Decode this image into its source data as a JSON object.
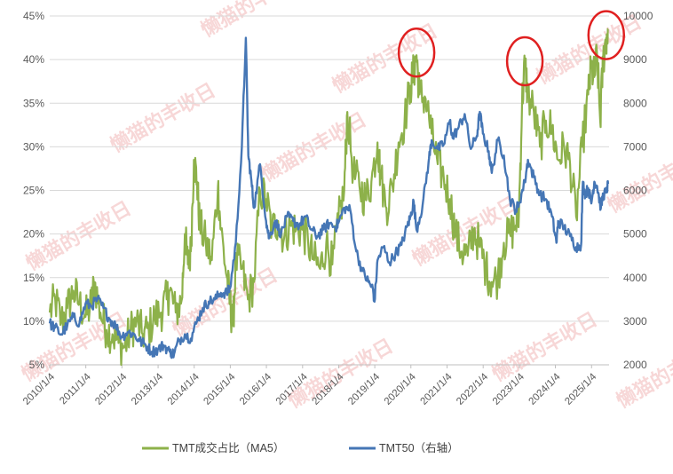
{
  "watermark": "懒猫的丰收日",
  "colors": {
    "green": "#8DB14A",
    "blue": "#4576B5",
    "circle": "#E02020",
    "grid": "#D9D9D9",
    "watermark": "#F2B8B8"
  },
  "chart_data": {
    "type": "line",
    "x_type": "date",
    "x_tick_labels": [
      "2010/1/4",
      "2011/1/4",
      "2012/1/4",
      "2013/1/4",
      "2014/1/4",
      "2015/1/4",
      "2016/1/4",
      "2017/1/4",
      "2018/1/4",
      "2019/1/4",
      "2020/1/4",
      "2021/1/4",
      "2022/1/4",
      "2023/1/4",
      "2024/1/4",
      "2025/1/4"
    ],
    "x_range": [
      "2010/1/4",
      "2025/6/30"
    ],
    "y_left": {
      "ticks": [
        "5%",
        "10%",
        "15%",
        "20%",
        "25%",
        "30%",
        "35%",
        "40%",
        "45%"
      ],
      "range": [
        5,
        45
      ]
    },
    "y_right": {
      "ticks": [
        "2000",
        "3000",
        "4000",
        "5000",
        "6000",
        "7000",
        "8000",
        "9000",
        "10000"
      ],
      "range": [
        2000,
        10000
      ]
    },
    "grid": "horizontal",
    "legend_position": "bottom",
    "series": [
      {
        "name": "TMT成交占比（MA5）",
        "axis": "left",
        "color": "#8DB14A",
        "points": [
          [
            "2010/1/4",
            11.0
          ],
          [
            "2010/3/1",
            12.5
          ],
          [
            "2010/5/1",
            10.0
          ],
          [
            "2010/7/1",
            11.5
          ],
          [
            "2010/9/1",
            13.5
          ],
          [
            "2010/11/1",
            12.0
          ],
          [
            "2011/1/1",
            10.5
          ],
          [
            "2011/3/1",
            12.0
          ],
          [
            "2011/4/1",
            14.5
          ],
          [
            "2011/6/1",
            11.0
          ],
          [
            "2011/8/1",
            9.0
          ],
          [
            "2011/10/1",
            8.5
          ],
          [
            "2011/12/1",
            7.5
          ],
          [
            "2012/2/1",
            7.0
          ],
          [
            "2012/4/1",
            9.0
          ],
          [
            "2012/6/1",
            10.0
          ],
          [
            "2012/8/1",
            8.5
          ],
          [
            "2012/10/1",
            9.0
          ],
          [
            "2012/12/1",
            10.5
          ],
          [
            "2013/2/1",
            11.0
          ],
          [
            "2013/4/1",
            12.5
          ],
          [
            "2013/5/1",
            13.5
          ],
          [
            "2013/7/1",
            11.0
          ],
          [
            "2013/9/1",
            12.5
          ],
          [
            "2013/10/1",
            20.0
          ],
          [
            "2013/11/1",
            16.5
          ],
          [
            "2013/12/1",
            18.0
          ],
          [
            "2014/1/1",
            28.5
          ],
          [
            "2014/2/1",
            26.0
          ],
          [
            "2014/3/1",
            21.0
          ],
          [
            "2014/5/1",
            19.0
          ],
          [
            "2014/7/1",
            17.0
          ],
          [
            "2014/9/1",
            25.5
          ],
          [
            "2014/10/1",
            20.5
          ],
          [
            "2014/12/1",
            15.0
          ],
          [
            "2015/1/1",
            12.0
          ],
          [
            "2015/2/1",
            9.5
          ],
          [
            "2015/3/1",
            17.0
          ],
          [
            "2015/5/1",
            16.0
          ],
          [
            "2015/7/1",
            12.5
          ],
          [
            "2015/9/1",
            14.5
          ],
          [
            "2015/11/1",
            25.0
          ],
          [
            "2016/1/1",
            24.0
          ],
          [
            "2016/3/1",
            20.5
          ],
          [
            "2016/5/1",
            21.5
          ],
          [
            "2016/7/1",
            19.5
          ],
          [
            "2016/9/1",
            21.0
          ],
          [
            "2016/11/1",
            20.5
          ],
          [
            "2017/1/1",
            20.5
          ],
          [
            "2017/3/1",
            19.0
          ],
          [
            "2017/5/1",
            17.0
          ],
          [
            "2017/7/1",
            16.0
          ],
          [
            "2017/9/1",
            19.0
          ],
          [
            "2017/11/1",
            16.5
          ],
          [
            "2018/1/1",
            21.5
          ],
          [
            "2018/3/1",
            25.0
          ],
          [
            "2018/4/1",
            34.0
          ],
          [
            "2018/6/1",
            27.0
          ],
          [
            "2018/8/1",
            25.5
          ],
          [
            "2018/10/1",
            24.0
          ],
          [
            "2018/12/1",
            26.0
          ],
          [
            "2019/2/1",
            30.5
          ],
          [
            "2019/3/1",
            27.0
          ],
          [
            "2019/5/1",
            23.0
          ],
          [
            "2019/7/1",
            25.5
          ],
          [
            "2019/9/1",
            30.5
          ],
          [
            "2019/11/1",
            33.0
          ],
          [
            "2020/1/1",
            37.0
          ],
          [
            "2020/2/1",
            38.5
          ],
          [
            "2020/3/1",
            40.5
          ],
          [
            "2020/4/1",
            36.0
          ],
          [
            "2020/6/1",
            35.5
          ],
          [
            "2020/8/1",
            31.5
          ],
          [
            "2020/10/1",
            28.0
          ],
          [
            "2020/12/1",
            26.5
          ],
          [
            "2021/2/1",
            24.0
          ],
          [
            "2021/4/1",
            20.0
          ],
          [
            "2021/6/1",
            18.0
          ],
          [
            "2021/8/1",
            17.5
          ],
          [
            "2021/10/1",
            20.5
          ],
          [
            "2021/12/1",
            18.5
          ],
          [
            "2022/2/1",
            16.0
          ],
          [
            "2022/4/1",
            14.5
          ],
          [
            "2022/6/1",
            15.0
          ],
          [
            "2022/8/1",
            19.0
          ],
          [
            "2022/10/1",
            20.0
          ],
          [
            "2022/12/1",
            21.0
          ],
          [
            "2023/1/1",
            22.5
          ],
          [
            "2023/2/1",
            35.0
          ],
          [
            "2023/3/1",
            39.5
          ],
          [
            "2023/4/1",
            36.0
          ],
          [
            "2023/6/1",
            34.0
          ],
          [
            "2023/8/1",
            30.0
          ],
          [
            "2023/10/1",
            33.0
          ],
          [
            "2023/12/1",
            32.0
          ],
          [
            "2024/2/1",
            28.5
          ],
          [
            "2024/4/1",
            30.0
          ],
          [
            "2024/6/1",
            28.0
          ],
          [
            "2024/8/1",
            22.0
          ],
          [
            "2024/10/1",
            30.0
          ],
          [
            "2024/12/1",
            36.0
          ],
          [
            "2025/1/1",
            39.0
          ],
          [
            "2025/2/1",
            38.0
          ],
          [
            "2025/3/1",
            40.5
          ],
          [
            "2025/4/1",
            33.0
          ],
          [
            "2025/5/1",
            40.0
          ],
          [
            "2025/6/1",
            42.5
          ],
          [
            "2025/6/20",
            43.5
          ]
        ]
      },
      {
        "name": "TMT50（右轴）",
        "axis": "right",
        "color": "#4576B5",
        "points": [
          [
            "2010/1/4",
            2950
          ],
          [
            "2010/3/1",
            2850
          ],
          [
            "2010/5/1",
            2700
          ],
          [
            "2010/7/1",
            2900
          ],
          [
            "2010/9/1",
            3100
          ],
          [
            "2010/11/1",
            2950
          ],
          [
            "2011/1/1",
            3400
          ],
          [
            "2011/3/1",
            3350
          ],
          [
            "2011/5/1",
            3500
          ],
          [
            "2011/7/1",
            3300
          ],
          [
            "2011/9/1",
            3050
          ],
          [
            "2011/11/1",
            2900
          ],
          [
            "2012/1/1",
            2650
          ],
          [
            "2012/3/1",
            2750
          ],
          [
            "2012/5/1",
            2700
          ],
          [
            "2012/7/1",
            2550
          ],
          [
            "2012/9/1",
            2450
          ],
          [
            "2012/11/1",
            2300
          ],
          [
            "2013/1/1",
            2350
          ],
          [
            "2013/3/1",
            2450
          ],
          [
            "2013/5/1",
            2300
          ],
          [
            "2013/6/15",
            2250
          ],
          [
            "2013/8/1",
            2550
          ],
          [
            "2013/10/1",
            2700
          ],
          [
            "2013/12/1",
            2600
          ],
          [
            "2014/2/1",
            3000
          ],
          [
            "2014/4/1",
            3300
          ],
          [
            "2014/6/1",
            3450
          ],
          [
            "2014/8/1",
            3500
          ],
          [
            "2014/10/1",
            3650
          ],
          [
            "2014/12/1",
            3650
          ],
          [
            "2015/1/1",
            3750
          ],
          [
            "2015/3/1",
            4800
          ],
          [
            "2015/5/1",
            7000
          ],
          [
            "2015/6/10",
            9500
          ],
          [
            "2015/7/5",
            6800
          ],
          [
            "2015/8/1",
            6300
          ],
          [
            "2015/9/1",
            5600
          ],
          [
            "2015/11/1",
            6600
          ],
          [
            "2016/1/1",
            5300
          ],
          [
            "2016/2/1",
            4900
          ],
          [
            "2016/4/1",
            5300
          ],
          [
            "2016/6/1",
            5000
          ],
          [
            "2016/8/1",
            5400
          ],
          [
            "2016/10/1",
            5300
          ],
          [
            "2016/12/1",
            5200
          ],
          [
            "2017/2/1",
            5400
          ],
          [
            "2017/4/1",
            5100
          ],
          [
            "2017/6/1",
            4950
          ],
          [
            "2017/8/1",
            5100
          ],
          [
            "2017/10/1",
            5250
          ],
          [
            "2017/12/1",
            5150
          ],
          [
            "2018/1/1",
            5250
          ],
          [
            "2018/3/1",
            5600
          ],
          [
            "2018/5/1",
            5550
          ],
          [
            "2018/7/1",
            4600
          ],
          [
            "2018/9/1",
            4150
          ],
          [
            "2018/11/1",
            3900
          ],
          [
            "2018/12/15",
            3750
          ],
          [
            "2019/1/1",
            3450
          ],
          [
            "2019/2/1",
            4400
          ],
          [
            "2019/4/1",
            4700
          ],
          [
            "2019/6/1",
            4350
          ],
          [
            "2019/8/1",
            4550
          ],
          [
            "2019/10/1",
            4750
          ],
          [
            "2019/12/1",
            5200
          ],
          [
            "2020/1/1",
            5400
          ],
          [
            "2020/2/1",
            5750
          ],
          [
            "2020/3/1",
            5100
          ],
          [
            "2020/5/1",
            5650
          ],
          [
            "2020/7/1",
            6650
          ],
          [
            "2020/8/1",
            7150
          ],
          [
            "2020/10/1",
            6950
          ],
          [
            "2020/12/1",
            7050
          ],
          [
            "2021/2/1",
            7600
          ],
          [
            "2021/3/1",
            7200
          ],
          [
            "2021/5/1",
            7450
          ],
          [
            "2021/7/1",
            7750
          ],
          [
            "2021/9/1",
            6950
          ],
          [
            "2021/11/1",
            7250
          ],
          [
            "2021/12/1",
            7800
          ],
          [
            "2022/1/1",
            7300
          ],
          [
            "2022/3/1",
            6900
          ],
          [
            "2022/4/1",
            6400
          ],
          [
            "2022/6/1",
            7150
          ],
          [
            "2022/8/1",
            6800
          ],
          [
            "2022/10/1",
            5800
          ],
          [
            "2022/12/1",
            5550
          ],
          [
            "2023/1/1",
            5700
          ],
          [
            "2023/3/1",
            6200
          ],
          [
            "2023/4/1",
            6700
          ],
          [
            "2023/6/1",
            6300
          ],
          [
            "2023/8/1",
            5900
          ],
          [
            "2023/10/1",
            5800
          ],
          [
            "2023/12/1",
            5400
          ],
          [
            "2024/1/15",
            4800
          ],
          [
            "2024/2/1",
            5300
          ],
          [
            "2024/4/1",
            5150
          ],
          [
            "2024/6/1",
            4950
          ],
          [
            "2024/8/1",
            4700
          ],
          [
            "2024/9/20",
            4750
          ],
          [
            "2024/10/8",
            6200
          ],
          [
            "2024/11/1",
            5900
          ],
          [
            "2024/12/1",
            6050
          ],
          [
            "2025/1/1",
            5700
          ],
          [
            "2025/2/1",
            6200
          ],
          [
            "2025/3/1",
            6100
          ],
          [
            "2025/4/8",
            5600
          ],
          [
            "2025/5/1",
            5900
          ],
          [
            "2025/6/1",
            5950
          ],
          [
            "2025/6/20",
            6150
          ]
        ]
      }
    ]
  }
}
